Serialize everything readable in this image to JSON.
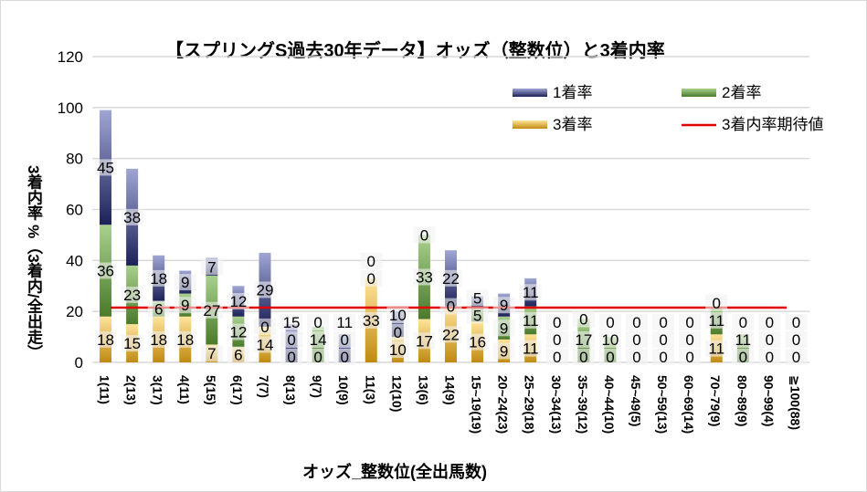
{
  "chart_data": {
    "type": "bar",
    "stacked": true,
    "title": "【スプリングS過去30年データ】オッズ（整数位）と3着内率",
    "xlabel": "オッズ_整数位(全出馬数)",
    "ylabel": "3着内率 %（3着内/全出走）",
    "ylim": [
      0,
      120
    ],
    "yticks": [
      0,
      20,
      40,
      60,
      80,
      100,
      120
    ],
    "grid": true,
    "legend_position": "top-right",
    "categories": [
      "1(11)",
      "2(13)",
      "3(17)",
      "4(11)",
      "5(15)",
      "6(17)",
      "7(7)",
      "8(13)",
      "9(7)",
      "10(9)",
      "11(3)",
      "12(10)",
      "13(6)",
      "14(9)",
      "15~19(19)",
      "20~24(23)",
      "25~29(18)",
      "30~34(13)",
      "35~39(12)",
      "40~44(10)",
      "45~49(5)",
      "50~59(13)",
      "60~69(14)",
      "70~79(9)",
      "80~89(9)",
      "90~99(4)",
      "≧100(88)"
    ],
    "series": [
      {
        "name": "3着率",
        "color": "#c9961a",
        "values": [
          18,
          15,
          18,
          18,
          7,
          6,
          14,
          0,
          0,
          0,
          33,
          10,
          17,
          22,
          16,
          9,
          11,
          0,
          0,
          0,
          0,
          0,
          0,
          11,
          0,
          0,
          0
        ]
      },
      {
        "name": "2着率",
        "color": "#5a8a3a",
        "values": [
          36,
          23,
          6,
          9,
          27,
          12,
          0,
          0,
          14,
          0,
          0,
          0,
          33,
          0,
          5,
          9,
          11,
          0,
          17,
          10,
          0,
          0,
          0,
          11,
          11,
          0,
          0
        ]
      },
      {
        "name": "1着率",
        "color": "#2a3275",
        "values": [
          45,
          38,
          18,
          9,
          7,
          12,
          29,
          15,
          0,
          11,
          0,
          10,
          0,
          22,
          5,
          9,
          11,
          0,
          0,
          0,
          0,
          0,
          0,
          0,
          0,
          0,
          0
        ]
      }
    ],
    "reference_line": {
      "name": "3着内率期待値",
      "color": "#e00000",
      "value": 21.5
    }
  }
}
